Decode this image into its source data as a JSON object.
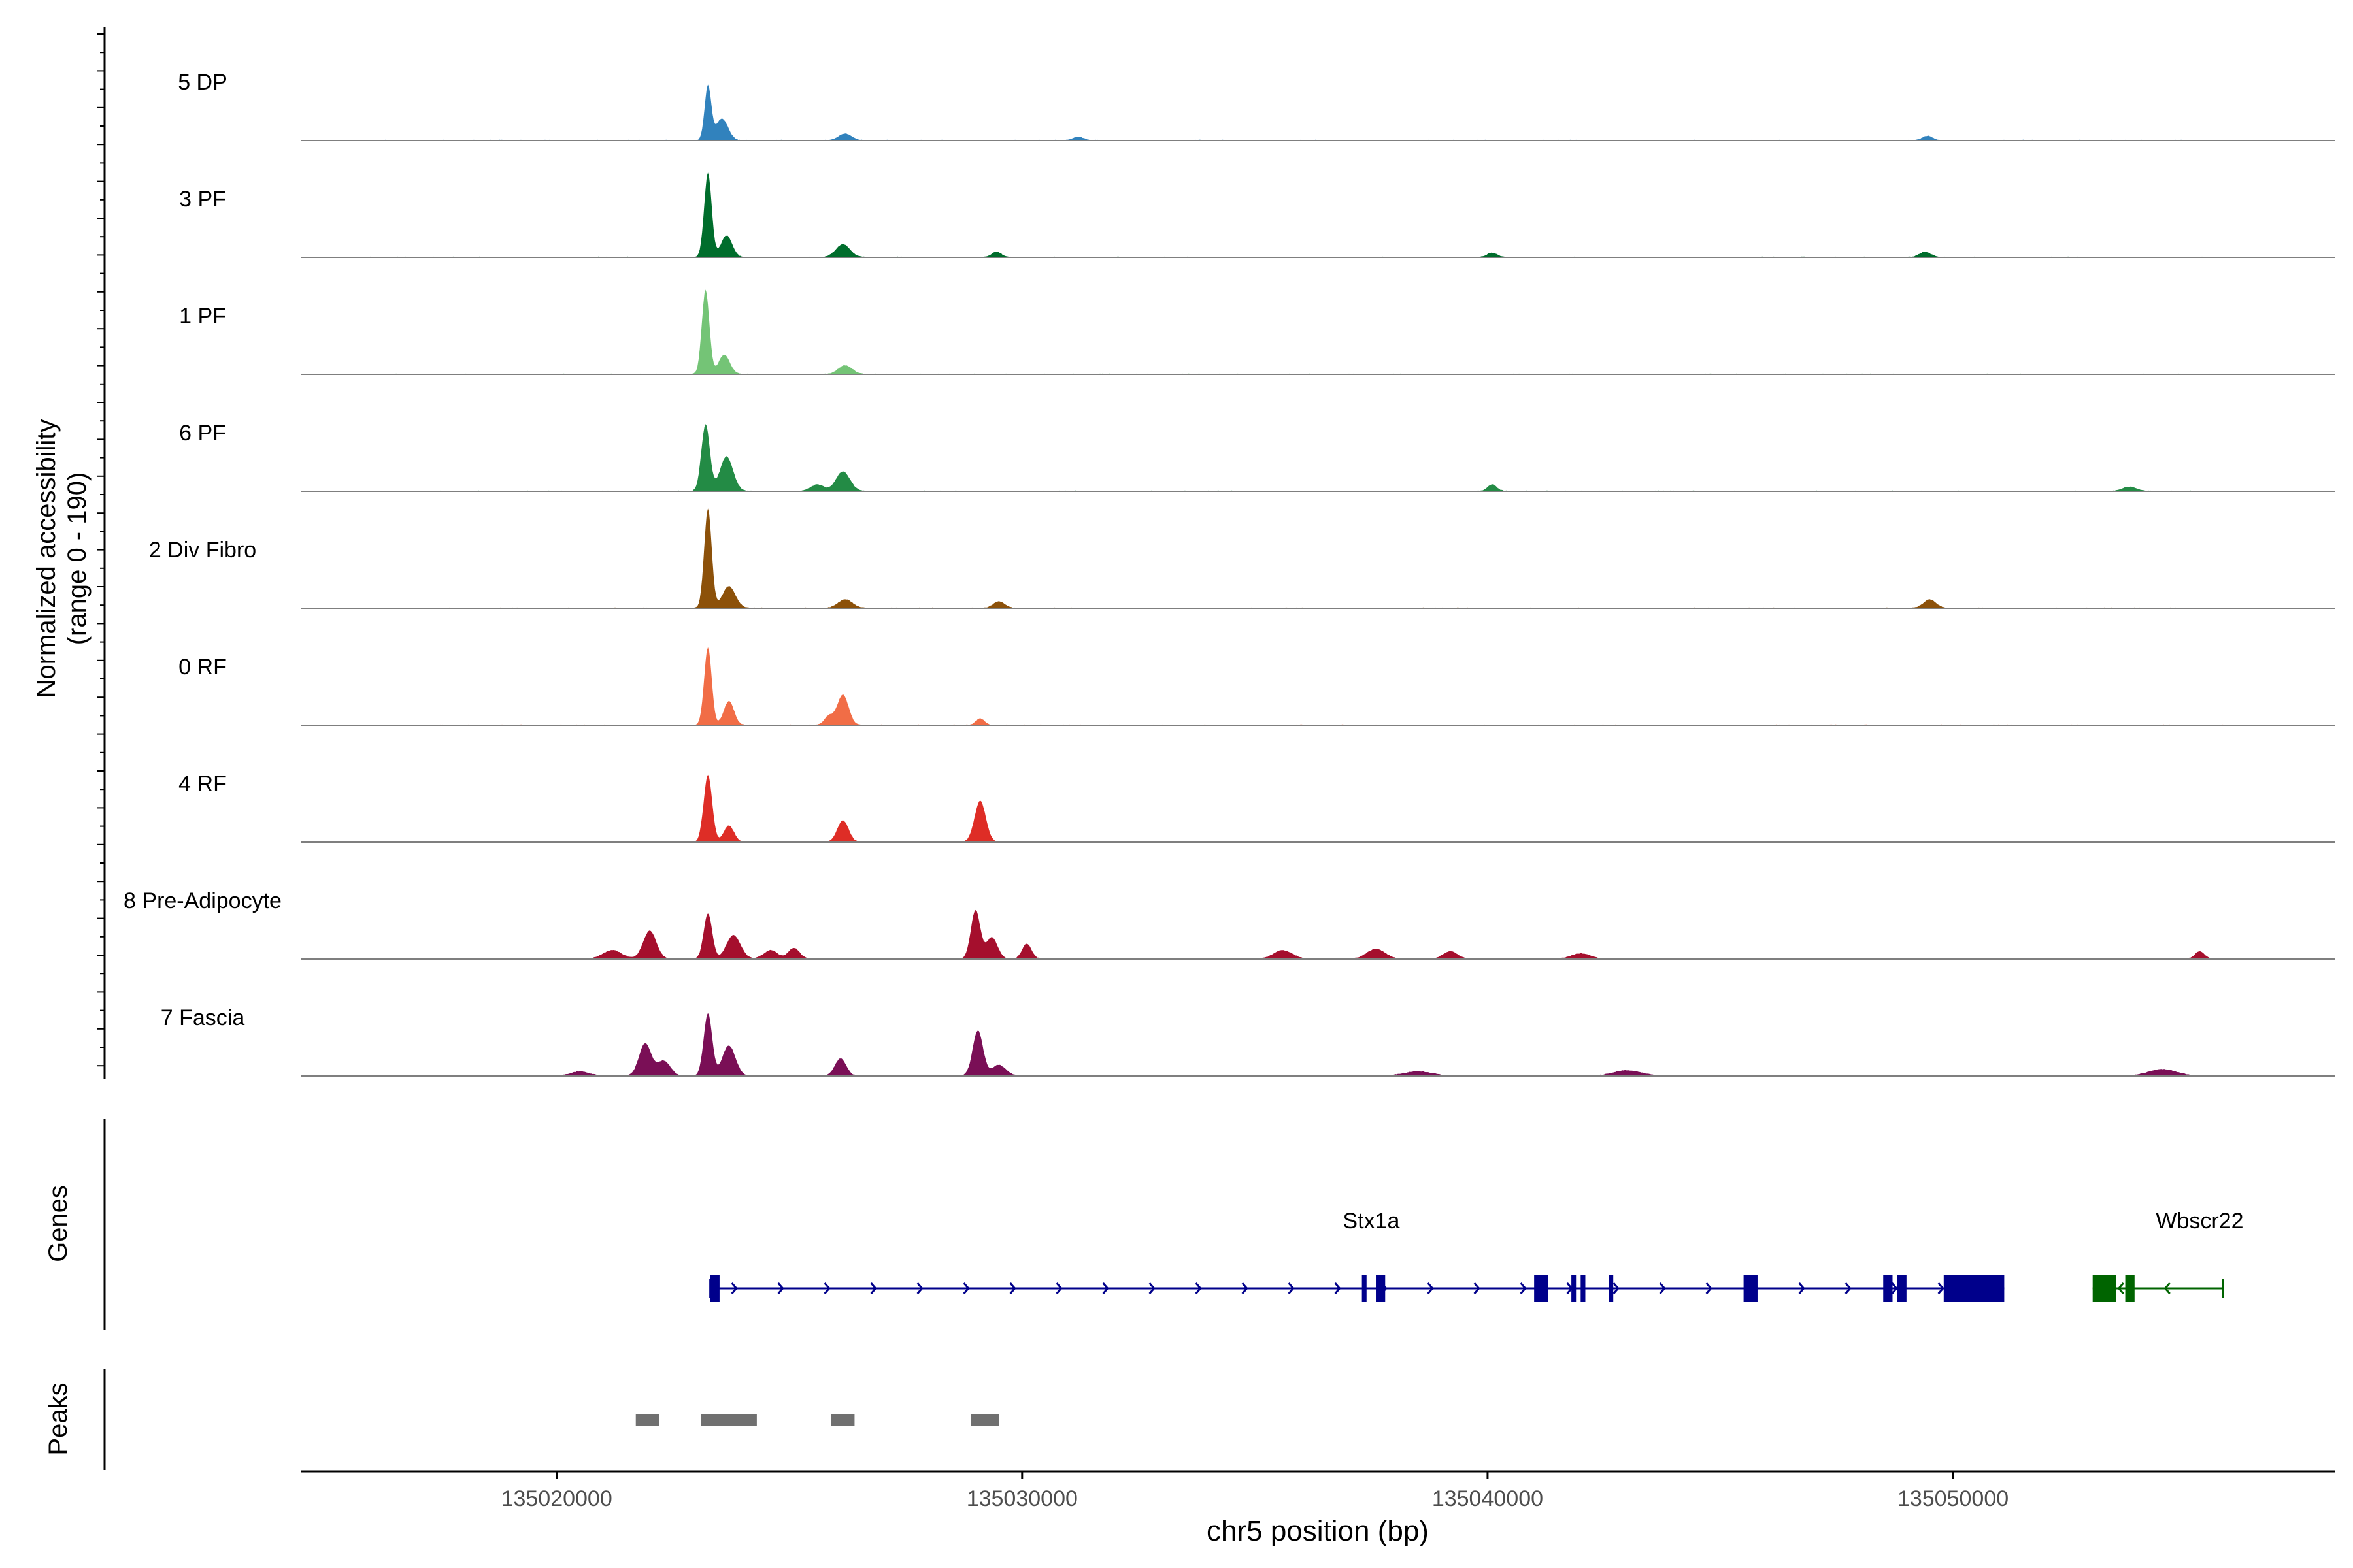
{
  "chart_data": {
    "type": "area",
    "title": "",
    "ylabel_line1": "Normalized accessibility",
    "ylabel_line2": "(range 0 - 190)",
    "y_range": [
      0,
      190
    ],
    "xlabel": "chr5 position (bp)",
    "x_range": [
      135014500,
      135058200
    ],
    "x_ticks": [
      135020000,
      135030000,
      135040000,
      135050000
    ],
    "x_tick_labels": [
      "135020000",
      "135030000",
      "135040000",
      "135050000"
    ],
    "genes_label": "Genes",
    "peaks_label": "Peaks",
    "tracks": [
      {
        "name": "5 DP",
        "color": "#3182bd",
        "peaks": [
          [
            135023250,
            0.5,
            70
          ],
          [
            135023550,
            0.2,
            130
          ],
          [
            135026200,
            0.06,
            140
          ],
          [
            135031200,
            0.03,
            120
          ],
          [
            135049450,
            0.04,
            110
          ]
        ]
      },
      {
        "name": "3 PF",
        "color": "#006d2c",
        "peaks": [
          [
            135023250,
            0.78,
            80
          ],
          [
            135023650,
            0.2,
            120
          ],
          [
            135026150,
            0.12,
            150
          ],
          [
            135029450,
            0.05,
            100
          ],
          [
            135040100,
            0.04,
            110
          ],
          [
            135049400,
            0.05,
            120
          ]
        ]
      },
      {
        "name": "1 PF",
        "color": "#74c476",
        "peaks": [
          [
            135023200,
            0.78,
            80
          ],
          [
            135023600,
            0.18,
            120
          ],
          [
            135026200,
            0.08,
            150
          ]
        ]
      },
      {
        "name": "6 PF",
        "color": "#238b45",
        "peaks": [
          [
            135023200,
            0.62,
            90
          ],
          [
            135023650,
            0.32,
            140
          ],
          [
            135026150,
            0.18,
            150
          ],
          [
            135025600,
            0.06,
            140
          ],
          [
            135040100,
            0.06,
            100
          ],
          [
            135053800,
            0.04,
            150
          ]
        ]
      },
      {
        "name": "2 Div Fibro",
        "color": "#8c510a",
        "peaks": [
          [
            135023250,
            0.92,
            80
          ],
          [
            135023700,
            0.2,
            140
          ],
          [
            135026200,
            0.08,
            150
          ],
          [
            135029500,
            0.06,
            120
          ],
          [
            135049500,
            0.08,
            130
          ]
        ]
      },
      {
        "name": "0 RF",
        "color": "#f16d46",
        "peaks": [
          [
            135023250,
            0.72,
            80
          ],
          [
            135023700,
            0.22,
            110
          ],
          [
            135026150,
            0.28,
            120
          ],
          [
            135025850,
            0.08,
            100
          ],
          [
            135029100,
            0.06,
            90
          ]
        ]
      },
      {
        "name": "4 RF",
        "color": "#de2d26",
        "peaks": [
          [
            135023250,
            0.62,
            90
          ],
          [
            135023700,
            0.15,
            110
          ],
          [
            135026150,
            0.2,
            120
          ],
          [
            135029100,
            0.38,
            120
          ]
        ]
      },
      {
        "name": "8 Pre-Adipocyte",
        "color": "#a50f2d",
        "peaks": [
          [
            135023250,
            0.42,
            90
          ],
          [
            135023800,
            0.22,
            150
          ],
          [
            135022000,
            0.26,
            140
          ],
          [
            135021200,
            0.08,
            200
          ],
          [
            135029000,
            0.45,
            100
          ],
          [
            135029350,
            0.2,
            120
          ],
          [
            135030100,
            0.14,
            100
          ],
          [
            135025100,
            0.1,
            120
          ],
          [
            135024600,
            0.08,
            150
          ],
          [
            135035600,
            0.08,
            200
          ],
          [
            135037600,
            0.09,
            200
          ],
          [
            135039200,
            0.07,
            150
          ],
          [
            135042000,
            0.05,
            200
          ],
          [
            135055300,
            0.07,
            100
          ]
        ]
      },
      {
        "name": "7 Fascia",
        "color": "#7a0f56",
        "peaks": [
          [
            135023250,
            0.58,
            90
          ],
          [
            135023700,
            0.28,
            140
          ],
          [
            135021900,
            0.3,
            130
          ],
          [
            135022300,
            0.14,
            140
          ],
          [
            135026100,
            0.16,
            120
          ],
          [
            135029050,
            0.42,
            110
          ],
          [
            135029500,
            0.1,
            150
          ],
          [
            135020500,
            0.04,
            200
          ],
          [
            135038500,
            0.04,
            300
          ],
          [
            135043000,
            0.05,
            300
          ],
          [
            135054500,
            0.06,
            300
          ]
        ]
      }
    ],
    "genes": [
      {
        "name": "Stx1a",
        "strand": "+",
        "color": "#00008b",
        "start": 135023300,
        "end": 135051100,
        "label_x": 135037500,
        "exons": [
          [
            135023300,
            135023500
          ],
          [
            135037300,
            135037400
          ],
          [
            135037600,
            135037800
          ],
          [
            135041000,
            135041300
          ],
          [
            135041800,
            135041900
          ],
          [
            135042000,
            135042100
          ],
          [
            135042600,
            135042700
          ],
          [
            135045500,
            135045800
          ],
          [
            135048500,
            135048700
          ],
          [
            135048800,
            135049000
          ],
          [
            135049800,
            135051100
          ]
        ]
      },
      {
        "name": "Wbscr22",
        "strand": "-",
        "color": "#006400",
        "start": 135053000,
        "end": 135055800,
        "label_x": 135055300,
        "exons": [
          [
            135053000,
            135053500
          ],
          [
            135053700,
            135053900
          ]
        ]
      }
    ],
    "peak_regions": [
      [
        135021700,
        135022200
      ],
      [
        135023100,
        135024300
      ],
      [
        135025900,
        135026400
      ],
      [
        135028900,
        135029500
      ]
    ]
  }
}
